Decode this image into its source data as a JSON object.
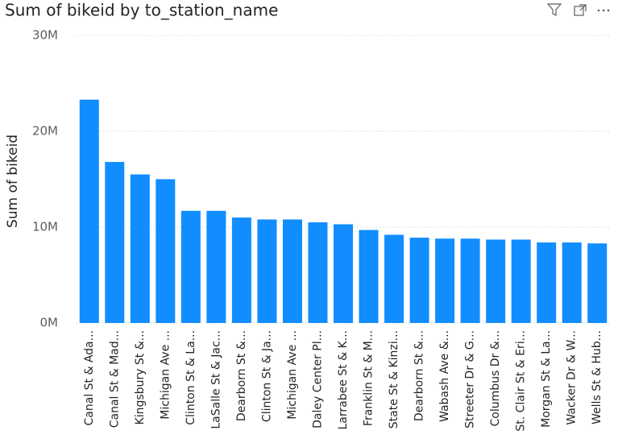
{
  "chart_data": {
    "type": "bar",
    "title": "Sum of bikeid by to_station_name",
    "y_label": "Sum of bikeid",
    "categories": [
      "Canal St & Ada...",
      "Canal St & Mad...",
      "Kingsbury St &...",
      "Michigan Ave ...",
      "Clinton St & La...",
      "LaSalle St & Jac...",
      "Dearborn St &...",
      "Clinton St & Ja...",
      "Michigan Ave ...",
      "Daley Center Pl...",
      "Larrabee St & K...",
      "Franklin St & M...",
      "State St & Kinzi...",
      "Dearborn St &...",
      "Wabash Ave &...",
      "Streeter Dr & G...",
      "Columbus Dr &...",
      "St. Clair St & Eri...",
      "Morgan St & La...",
      "Wacker Dr & W...",
      "Wells St & Hub..."
    ],
    "values": [
      23300000,
      16800000,
      15500000,
      15000000,
      11700000,
      11700000,
      11000000,
      10800000,
      10800000,
      10500000,
      10300000,
      9700000,
      9200000,
      8900000,
      8800000,
      8800000,
      8700000,
      8700000,
      8400000,
      8400000,
      8300000
    ],
    "color": "#118dff",
    "ylim": [
      0,
      30000000
    ],
    "yticks": [
      {
        "value": 0,
        "label": "0M"
      },
      {
        "value": 10000000,
        "label": "10M"
      },
      {
        "value": 20000000,
        "label": "20M"
      },
      {
        "value": 30000000,
        "label": "30M"
      }
    ],
    "grid": true
  }
}
